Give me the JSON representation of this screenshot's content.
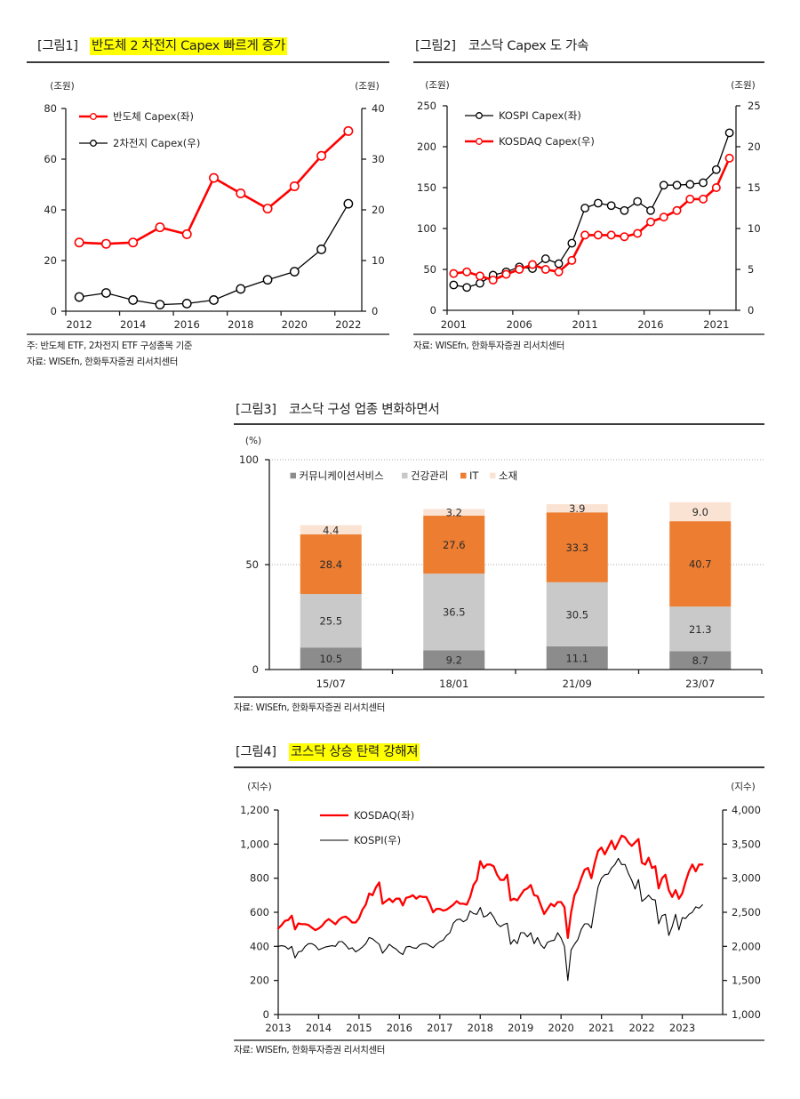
{
  "figures": [
    {
      "label": "[그림1]",
      "title": "반도체 2 차전지 Capex 빠르게 증가",
      "highlight": true,
      "notes": [
        "주: 반도체 ETF, 2차전지 ETF 구성종목 기준",
        "자료: WISEfn, 한화투자증권 리서치센터"
      ]
    },
    {
      "label": "[그림2]",
      "title": "코스닥 Capex 도 가속",
      "highlight": false,
      "notes": [
        "자료: WISEfn, 한화투자증권 리서치센터"
      ]
    },
    {
      "label": "[그림3]",
      "title": "코스닥 구성 업종 변화하면서",
      "highlight": false,
      "notes": [
        "자료: WISEfn, 한화투자증권 리서치센터"
      ]
    },
    {
      "label": "[그림4]",
      "title": "코스닥 상승 탄력 강해져",
      "highlight": true,
      "notes": [
        "자료: WISEfn, 한화투자증권 리서치센터"
      ]
    }
  ],
  "colors": {
    "highlight": "#ffff00",
    "red": "#ff0000",
    "black": "#000000",
    "orange": "#ed7d31"
  },
  "chart_data": [
    {
      "type": "line",
      "title": "반도체 2 차전지 Capex 빠르게 증가",
      "x_type": "category",
      "categories": [
        "2012",
        "2013",
        "2014",
        "2015",
        "2016",
        "2017",
        "2018",
        "2019",
        "2020",
        "2021",
        "2022"
      ],
      "xtick_labels": [
        "2012",
        "2014",
        "2016",
        "2018",
        "2020",
        "2022"
      ],
      "left_axis": {
        "unit": "(조원)",
        "range": [
          0,
          80
        ],
        "ticks": [
          0,
          20,
          40,
          60,
          80
        ],
        "tick_labels": [
          "0",
          "20",
          "40",
          "60",
          "80"
        ]
      },
      "right_axis": {
        "unit": "(조원)",
        "range": [
          0,
          40
        ],
        "ticks": [
          0,
          10,
          20,
          30,
          40
        ],
        "tick_labels": [
          "0",
          "10",
          "20",
          "30",
          "40"
        ]
      },
      "series": [
        {
          "name": "반도체  Capex(좌)",
          "axis": "left",
          "color": "#ff0000",
          "marker": "open-circle",
          "values": [
            27.1,
            26.6,
            27.1,
            33.1,
            30.4,
            52.6,
            46.5,
            40.5,
            49.3,
            61.3,
            71.1
          ]
        },
        {
          "name": "2차전지  Capex(우)",
          "axis": "right",
          "color": "#000000",
          "marker": "open-circle",
          "values": [
            2.8,
            3.6,
            2.2,
            1.3,
            1.5,
            2.2,
            4.4,
            6.2,
            7.8,
            12.2,
            21.2
          ]
        }
      ],
      "legend": "top-left",
      "grid": false
    },
    {
      "type": "line",
      "title": "코스닥 Capex 도 가속",
      "x_type": "category",
      "categories": [
        "2001",
        "2002",
        "2003",
        "2004",
        "2005",
        "2006",
        "2007",
        "2008",
        "2009",
        "2010",
        "2011",
        "2012",
        "2013",
        "2014",
        "2015",
        "2016",
        "2017",
        "2018",
        "2019",
        "2020",
        "2021",
        "2022"
      ],
      "xtick_labels": [
        "2001",
        "2006",
        "2011",
        "2016",
        "2021"
      ],
      "left_axis": {
        "unit": "(조원)",
        "range": [
          0,
          250
        ],
        "ticks": [
          0,
          50,
          100,
          150,
          200,
          250
        ],
        "tick_labels": [
          "0",
          "50",
          "100",
          "150",
          "200",
          "250"
        ]
      },
      "right_axis": {
        "unit": "(조원)",
        "range": [
          0,
          25
        ],
        "ticks": [
          0,
          5,
          10,
          15,
          20,
          25
        ],
        "tick_labels": [
          "0",
          "5",
          "10",
          "15",
          "20",
          "25"
        ]
      },
      "series": [
        {
          "name": "KOSPI  Capex(좌)",
          "axis": "left",
          "color": "#000000",
          "marker": "open-circle",
          "values": [
            31,
            28,
            33,
            43,
            47,
            53,
            51,
            63,
            57,
            82,
            125,
            131,
            128,
            122,
            133,
            122,
            153,
            153,
            154,
            156,
            172,
            217
          ]
        },
        {
          "name": "KOSDAQ Capex(우)",
          "axis": "right",
          "color": "#ff0000",
          "marker": "open-circle",
          "values": [
            4.5,
            4.7,
            4.2,
            3.7,
            4.4,
            5.0,
            5.6,
            5.0,
            4.7,
            6.1,
            9.2,
            9.2,
            9.2,
            9.0,
            9.4,
            10.8,
            11.4,
            12.2,
            13.6,
            13.6,
            15.0,
            18.6
          ]
        }
      ],
      "legend": "top-left",
      "grid": false
    },
    {
      "type": "bar",
      "stacked": true,
      "title": "코스닥 구성 업종 변화하면서",
      "categories": [
        "15/07",
        "18/01",
        "21/09",
        "23/07"
      ],
      "y_axis": {
        "unit": "(%)",
        "range": [
          0,
          100
        ],
        "ticks": [
          0,
          50,
          100
        ],
        "tick_labels": [
          "0",
          "50",
          "100"
        ],
        "gridlines": [
          50,
          100
        ]
      },
      "series": [
        {
          "name": "커뮤니케이션서비스",
          "color": "#8c8c8c",
          "values": [
            10.5,
            9.2,
            11.1,
            8.7
          ],
          "labels": [
            "10.5",
            "9.2",
            "11.1",
            "8.7"
          ]
        },
        {
          "name": "건강관리",
          "color": "#c9c9c9",
          "values": [
            25.5,
            36.5,
            30.5,
            21.3
          ],
          "labels": [
            "25.5",
            "36.5",
            "30.5",
            "21.3"
          ]
        },
        {
          "name": "IT",
          "color": "#ed7d31",
          "values": [
            28.4,
            27.6,
            33.3,
            40.7
          ],
          "labels": [
            "28.4",
            "27.6",
            "33.3",
            "40.7"
          ]
        },
        {
          "name": "소재",
          "color": "#fbe3d3",
          "values": [
            4.4,
            3.2,
            3.9,
            9.0
          ],
          "labels": [
            "4.4",
            "3.2",
            "3.9",
            "9.0"
          ]
        }
      ],
      "legend": "top-left",
      "grid": "dotted horizontal"
    },
    {
      "type": "line",
      "title": "코스닥 상승 탄력 강해져",
      "x_type": "time",
      "frequency": "monthly",
      "start": {
        "year": 2013,
        "month": 1
      },
      "x_range": [
        2013,
        2024
      ],
      "xtick_labels": [
        "2013",
        "2014",
        "2015",
        "2016",
        "2017",
        "2018",
        "2019",
        "2020",
        "2021",
        "2022",
        "2023"
      ],
      "left_axis": {
        "unit": "(지수)",
        "range": [
          0,
          1200
        ],
        "ticks": [
          0,
          200,
          400,
          600,
          800,
          1000,
          1200
        ],
        "tick_labels": [
          "0",
          "200",
          "400",
          "600",
          "800",
          "1,000",
          "1,200"
        ]
      },
      "right_axis": {
        "unit": "(지수)",
        "range": [
          1000,
          4000
        ],
        "ticks": [
          1000,
          1500,
          2000,
          2500,
          3000,
          3500,
          4000
        ],
        "tick_labels": [
          "1,000",
          "1,500",
          "2,000",
          "2,500",
          "3,000",
          "3,500",
          "4,000"
        ]
      },
      "series": [
        {
          "name": "KOSDAQ(좌)",
          "axis": "left",
          "color": "#ff0000",
          "marker": null,
          "values": [
            505,
            525,
            550,
            555,
            580,
            500,
            535,
            530,
            530,
            525,
            510,
            495,
            505,
            520,
            545,
            560,
            545,
            530,
            555,
            570,
            575,
            560,
            540,
            540,
            565,
            615,
            645,
            710,
            700,
            745,
            775,
            650,
            665,
            680,
            660,
            680,
            680,
            640,
            685,
            690,
            700,
            680,
            695,
            690,
            690,
            650,
            600,
            620,
            620,
            610,
            615,
            630,
            645,
            665,
            650,
            650,
            645,
            690,
            760,
            790,
            900,
            860,
            880,
            880,
            870,
            820,
            790,
            790,
            820,
            670,
            680,
            670,
            700,
            730,
            740,
            760,
            700,
            695,
            640,
            590,
            620,
            650,
            635,
            660,
            660,
            630,
            450,
            600,
            700,
            740,
            800,
            850,
            860,
            800,
            890,
            960,
            980,
            940,
            980,
            1020,
            970,
            1010,
            1050,
            1040,
            1010,
            990,
            1010,
            1030,
            890,
            880,
            920,
            860,
            870,
            740,
            800,
            820,
            730,
            690,
            730,
            680,
            710,
            780,
            840,
            880,
            840,
            880,
            880
          ]
        },
        {
          "name": "KOSPI(우)",
          "axis": "right",
          "color": "#000000",
          "marker": null,
          "values": [
            2000,
            2010,
            2000,
            1960,
            2000,
            1830,
            1920,
            1930,
            2000,
            2040,
            2040,
            2010,
            1950,
            1970,
            1990,
            2000,
            2010,
            2000,
            2070,
            2070,
            2020,
            1960,
            1980,
            1920,
            1950,
            1990,
            2040,
            2130,
            2110,
            2070,
            2030,
            1900,
            1960,
            2030,
            1990,
            1960,
            1910,
            1880,
            1990,
            2000,
            1980,
            1970,
            2020,
            2040,
            2040,
            2010,
            1980,
            2030,
            2070,
            2090,
            2160,
            2200,
            2340,
            2390,
            2400,
            2360,
            2390,
            2520,
            2480,
            2470,
            2570,
            2430,
            2450,
            2500,
            2430,
            2330,
            2290,
            2320,
            2340,
            2030,
            2100,
            2040,
            2200,
            2200,
            2140,
            2200,
            2040,
            2130,
            2020,
            1970,
            2060,
            2080,
            2090,
            2200,
            2120,
            2000,
            1500,
            1950,
            2030,
            2100,
            2250,
            2330,
            2330,
            2270,
            2590,
            2870,
            3000,
            3050,
            3060,
            3150,
            3200,
            3290,
            3200,
            3200,
            3070,
            2970,
            2840,
            2980,
            2660,
            2700,
            2750,
            2690,
            2680,
            2330,
            2450,
            2470,
            2160,
            2290,
            2470,
            2240,
            2420,
            2410,
            2470,
            2500,
            2580,
            2560,
            2610
          ]
        }
      ],
      "legend": "top-left",
      "grid": false
    }
  ]
}
